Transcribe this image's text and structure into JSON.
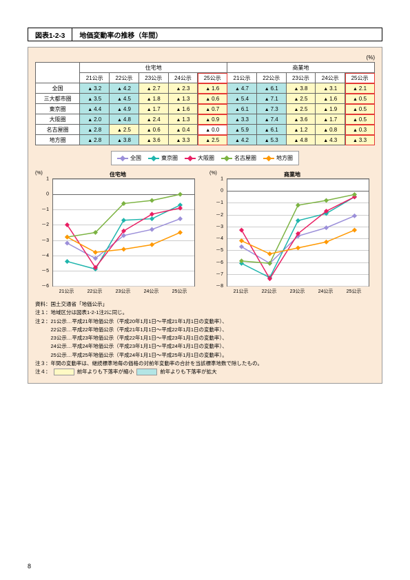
{
  "figure_number": "図表1-2-3",
  "figure_title": "地価変動率の推移（年間）",
  "unit_label": "(%)",
  "table": {
    "group_headers": [
      "住宅地",
      "商業地"
    ],
    "year_headers": [
      "21公示",
      "22公示",
      "23公示",
      "24公示",
      "25公示",
      "21公示",
      "22公示",
      "23公示",
      "24公示",
      "25公示"
    ],
    "rows": [
      {
        "label": "全国",
        "cells": [
          {
            "v": "3.2",
            "c": "c"
          },
          {
            "v": "4.2",
            "c": "c"
          },
          {
            "v": "2.7",
            "c": "y"
          },
          {
            "v": "2.3",
            "c": "y"
          },
          {
            "v": "1.6",
            "c": "y"
          },
          {
            "v": "4.7",
            "c": "c"
          },
          {
            "v": "6.1",
            "c": "c"
          },
          {
            "v": "3.8",
            "c": "y"
          },
          {
            "v": "3.1",
            "c": "y"
          },
          {
            "v": "2.1",
            "c": "y"
          }
        ]
      },
      {
        "label": "三大都市圏",
        "cells": [
          {
            "v": "3.5",
            "c": "c"
          },
          {
            "v": "4.5",
            "c": "c"
          },
          {
            "v": "1.8",
            "c": "y"
          },
          {
            "v": "1.3",
            "c": "y"
          },
          {
            "v": "0.6",
            "c": "y"
          },
          {
            "v": "5.4",
            "c": "c"
          },
          {
            "v": "7.1",
            "c": "c"
          },
          {
            "v": "2.5",
            "c": "y"
          },
          {
            "v": "1.6",
            "c": "y"
          },
          {
            "v": "0.5",
            "c": "y"
          }
        ]
      },
      {
        "label": "東京圏",
        "cells": [
          {
            "v": "4.4",
            "c": "c"
          },
          {
            "v": "4.9",
            "c": "c"
          },
          {
            "v": "1.7",
            "c": "y"
          },
          {
            "v": "1.6",
            "c": "y"
          },
          {
            "v": "0.7",
            "c": "y"
          },
          {
            "v": "6.1",
            "c": "c"
          },
          {
            "v": "7.3",
            "c": "c"
          },
          {
            "v": "2.5",
            "c": "y"
          },
          {
            "v": "1.9",
            "c": "y"
          },
          {
            "v": "0.5",
            "c": "y"
          }
        ]
      },
      {
        "label": "大阪圏",
        "cells": [
          {
            "v": "2.0",
            "c": "c"
          },
          {
            "v": "4.8",
            "c": "c"
          },
          {
            "v": "2.4",
            "c": "y"
          },
          {
            "v": "1.3",
            "c": "y"
          },
          {
            "v": "0.9",
            "c": "y"
          },
          {
            "v": "3.3",
            "c": "c"
          },
          {
            "v": "7.4",
            "c": "c"
          },
          {
            "v": "3.6",
            "c": "y"
          },
          {
            "v": "1.7",
            "c": "y"
          },
          {
            "v": "0.5",
            "c": "y"
          }
        ]
      },
      {
        "label": "名古屋圏",
        "cells": [
          {
            "v": "2.8",
            "c": "c"
          },
          {
            "v": "2.5",
            "c": "y"
          },
          {
            "v": "0.6",
            "c": "y"
          },
          {
            "v": "0.4",
            "c": "y"
          },
          {
            "v": "0.0",
            "c": ""
          },
          {
            "v": "5.9",
            "c": "c"
          },
          {
            "v": "6.1",
            "c": "c"
          },
          {
            "v": "1.2",
            "c": "y"
          },
          {
            "v": "0.8",
            "c": "y"
          },
          {
            "v": "0.3",
            "c": "y"
          }
        ]
      },
      {
        "label": "地方圏",
        "cells": [
          {
            "v": "2.8",
            "c": "c"
          },
          {
            "v": "3.8",
            "c": "c"
          },
          {
            "v": "3.6",
            "c": "y"
          },
          {
            "v": "3.3",
            "c": "y"
          },
          {
            "v": "2.5",
            "c": "y"
          },
          {
            "v": "4.2",
            "c": "c"
          },
          {
            "v": "5.3",
            "c": "c"
          },
          {
            "v": "4.8",
            "c": "y"
          },
          {
            "v": "4.3",
            "c": "y"
          },
          {
            "v": "3.3",
            "c": "y"
          }
        ]
      }
    ]
  },
  "legend": [
    {
      "label": "全国",
      "color": "#9b8fd9"
    },
    {
      "label": "東京圏",
      "color": "#1fb5ad"
    },
    {
      "label": "大阪圏",
      "color": "#e91e63"
    },
    {
      "label": "名古屋圏",
      "color": "#7cb342"
    },
    {
      "label": "地方圏",
      "color": "#ff9800"
    }
  ],
  "charts": [
    {
      "title": "住宅地",
      "ymin": -6,
      "ymax": 1,
      "ystep": 1,
      "x_labels": [
        "21公示",
        "22公示",
        "23公示",
        "24公示",
        "25公示"
      ],
      "series": [
        {
          "color": "#9b8fd9",
          "y": [
            -3.2,
            -4.2,
            -2.7,
            -2.3,
            -1.6
          ]
        },
        {
          "color": "#1fb5ad",
          "y": [
            -4.4,
            -4.9,
            -1.7,
            -1.6,
            -0.7
          ]
        },
        {
          "color": "#e91e63",
          "y": [
            -2.0,
            -4.8,
            -2.4,
            -1.3,
            -0.9
          ]
        },
        {
          "color": "#7cb342",
          "y": [
            -2.8,
            -2.5,
            -0.6,
            -0.4,
            0.0
          ]
        },
        {
          "color": "#ff9800",
          "y": [
            -2.8,
            -3.8,
            -3.6,
            -3.3,
            -2.5
          ]
        }
      ]
    },
    {
      "title": "商業地",
      "ymin": -8,
      "ymax": 1,
      "ystep": 1,
      "x_labels": [
        "21公示",
        "22公示",
        "23公示",
        "24公示",
        "25公示"
      ],
      "series": [
        {
          "color": "#9b8fd9",
          "y": [
            -4.7,
            -6.1,
            -3.8,
            -3.1,
            -2.1
          ]
        },
        {
          "color": "#1fb5ad",
          "y": [
            -6.1,
            -7.3,
            -2.5,
            -1.9,
            -0.5
          ]
        },
        {
          "color": "#e91e63",
          "y": [
            -3.3,
            -7.4,
            -3.6,
            -1.7,
            -0.5
          ]
        },
        {
          "color": "#7cb342",
          "y": [
            -5.9,
            -6.1,
            -1.2,
            -0.8,
            -0.3
          ]
        },
        {
          "color": "#ff9800",
          "y": [
            -4.2,
            -5.3,
            -4.8,
            -4.3,
            -3.3
          ]
        }
      ]
    }
  ],
  "notes": {
    "source": "資料：国土交通省「地価公示」",
    "lines": [
      "注１：地域区分は図表1-2-1注2に同じ。",
      "注２：21公示…平成21年地価公示（平成20年1月1日～平成21年1月1日の変動率）、",
      "　　　22公示…平成22年地価公示（平成21年1月1日～平成22年1月1日の変動率）、",
      "　　　23公示…平成23年地価公示（平成22年1月1日～平成23年1月1日の変動率）、",
      "　　　24公示…平成24年地価公示（平成23年1月1日～平成24年1月1日の変動率）、",
      "　　　25公示…平成25年地価公示（平成24年1月1日～平成25年1月1日の変動率）。",
      "注３：年間の変動率は、継続標準地毎の価格の対前年変動率の合計を当該標準地数で除したもの。"
    ],
    "note4_prefix": "注４：",
    "note4_yellow": "前年よりも下落率が縮小",
    "note4_cyan": "前年よりも下落率が拡大"
  },
  "colors": {
    "yellow": "#fff9c4",
    "cyan": "#b3e5e5"
  },
  "page_number": "8"
}
